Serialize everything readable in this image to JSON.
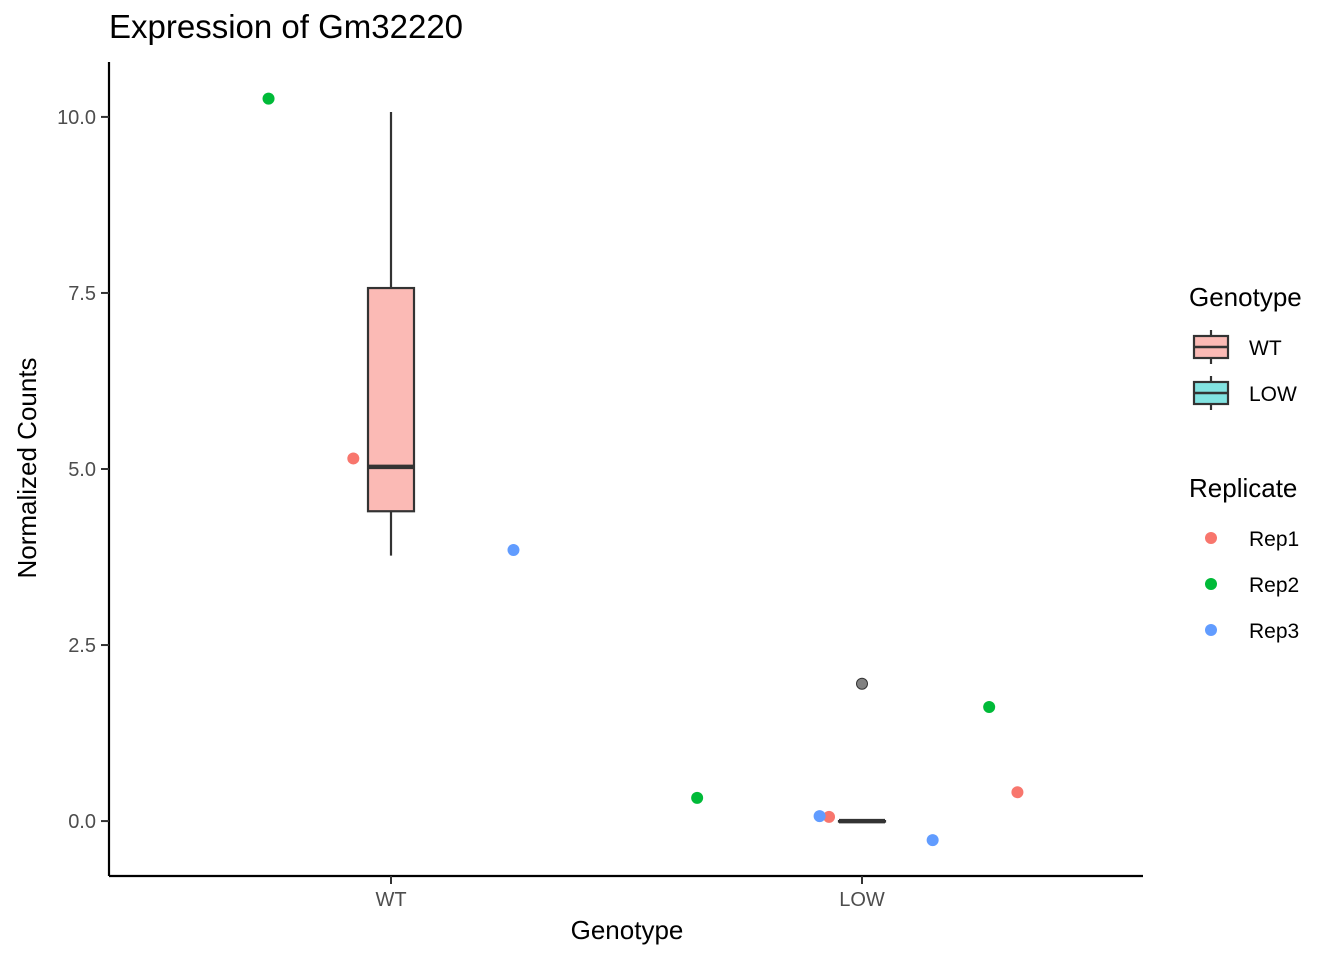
{
  "chart_data": {
    "type": "boxplot",
    "title": "Expression of Gm32220",
    "xlabel": "Genotype",
    "ylabel": "Normalized Counts",
    "categories": [
      "WT",
      "LOW"
    ],
    "ylim": [
      -0.78,
      10.78
    ],
    "yticks": [
      0.0,
      2.5,
      5.0,
      7.5,
      10.0
    ],
    "ytick_labels": [
      "0.0",
      "2.5",
      "5.0",
      "7.5",
      "10.0"
    ],
    "boxes": [
      {
        "category": "WT",
        "q1": 4.4,
        "median": 5.03,
        "q3": 7.57,
        "whisker_low": 3.77,
        "whisker_high": 10.07,
        "fill": "#fbbab5"
      },
      {
        "category": "LOW",
        "q1": 0.0,
        "median": 0.0,
        "q3": 0.0,
        "whisker_low": 0.0,
        "whisker_high": 0.0,
        "fill": "#82e3e1"
      }
    ],
    "outliers": [
      {
        "category": "LOW",
        "y": 1.95,
        "color": "#6b6b6b"
      }
    ],
    "points": [
      {
        "category": "WT",
        "replicate": "Rep1",
        "jitter": -0.08,
        "y": 5.15
      },
      {
        "category": "WT",
        "replicate": "Rep2",
        "jitter": -0.26,
        "y": 10.26
      },
      {
        "category": "WT",
        "replicate": "Rep3",
        "jitter": 0.26,
        "y": 3.85
      },
      {
        "category": "LOW",
        "replicate": "Rep1",
        "jitter": -0.07,
        "y": 0.06
      },
      {
        "category": "LOW",
        "replicate": "Rep1",
        "jitter": 0.33,
        "y": 0.41
      },
      {
        "category": "LOW",
        "replicate": "Rep2",
        "jitter": -0.35,
        "y": 0.33
      },
      {
        "category": "LOW",
        "replicate": "Rep2",
        "jitter": 0.27,
        "y": 1.62
      },
      {
        "category": "LOW",
        "replicate": "Rep3",
        "jitter": -0.09,
        "y": 0.07
      },
      {
        "category": "LOW",
        "replicate": "Rep3",
        "jitter": 0.15,
        "y": -0.27
      }
    ],
    "legend": {
      "placement": "right",
      "genotype_title": "Genotype",
      "genotype_items": [
        {
          "label": "WT",
          "fill": "#fbbab5"
        },
        {
          "label": "LOW",
          "fill": "#82e3e1"
        }
      ],
      "replicate_title": "Replicate",
      "replicate_items": [
        {
          "label": "Rep1",
          "color": "#f8766d"
        },
        {
          "label": "Rep2",
          "color": "#00ba38"
        },
        {
          "label": "Rep3",
          "color": "#619cff"
        }
      ]
    },
    "grid": false
  }
}
